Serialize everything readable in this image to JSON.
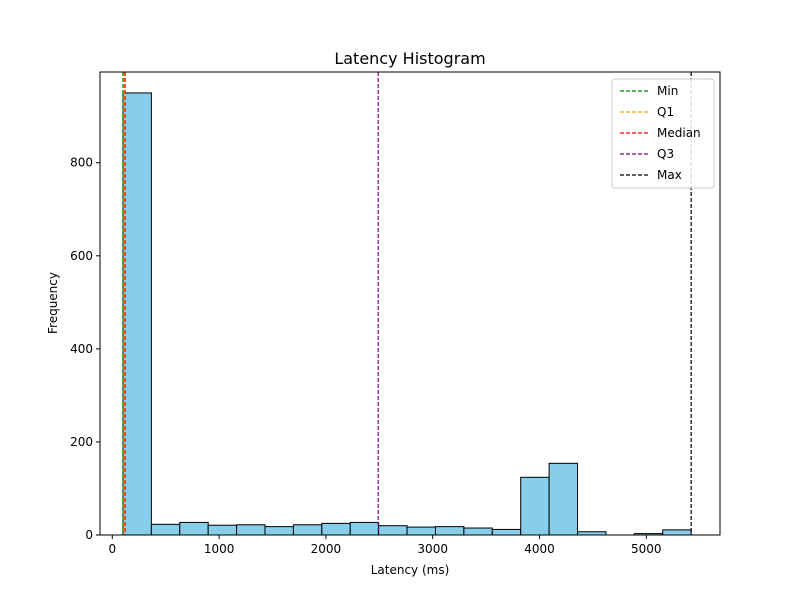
{
  "chart_data": {
    "type": "bar",
    "title": "Latency Histogram",
    "xlabel": "Latency (ms)",
    "ylabel": "Frequency",
    "xlim": [
      -115,
      5690
    ],
    "ylim": [
      0,
      995
    ],
    "xticks": [
      0,
      1000,
      2000,
      3000,
      4000,
      5000
    ],
    "yticks": [
      0,
      200,
      400,
      600,
      800
    ],
    "bar_color": "#87ceeb",
    "edge_color": "#000000",
    "bins": [
      {
        "x0": 100,
        "x1": 366,
        "count": 950
      },
      {
        "x0": 366,
        "x1": 632,
        "count": 23
      },
      {
        "x0": 632,
        "x1": 898,
        "count": 27
      },
      {
        "x0": 898,
        "x1": 1164,
        "count": 21
      },
      {
        "x0": 1164,
        "x1": 1430,
        "count": 22
      },
      {
        "x0": 1430,
        "x1": 1696,
        "count": 18
      },
      {
        "x0": 1696,
        "x1": 1962,
        "count": 22
      },
      {
        "x0": 1962,
        "x1": 2228,
        "count": 25
      },
      {
        "x0": 2228,
        "x1": 2494,
        "count": 27
      },
      {
        "x0": 2494,
        "x1": 2760,
        "count": 20
      },
      {
        "x0": 2760,
        "x1": 3026,
        "count": 17
      },
      {
        "x0": 3026,
        "x1": 3292,
        "count": 18
      },
      {
        "x0": 3292,
        "x1": 3558,
        "count": 15
      },
      {
        "x0": 3558,
        "x1": 3824,
        "count": 12
      },
      {
        "x0": 3824,
        "x1": 4090,
        "count": 124
      },
      {
        "x0": 4090,
        "x1": 4356,
        "count": 154
      },
      {
        "x0": 4356,
        "x1": 4622,
        "count": 7
      },
      {
        "x0": 4622,
        "x1": 4888,
        "count": 0
      },
      {
        "x0": 4888,
        "x1": 5154,
        "count": 3
      },
      {
        "x0": 5154,
        "x1": 5420,
        "count": 11
      }
    ],
    "reference_lines": [
      {
        "name": "Min",
        "value": 100,
        "color": "#008000"
      },
      {
        "name": "Q1",
        "value": 110,
        "color": "#ffa500"
      },
      {
        "name": "Median",
        "value": 120,
        "color": "#ff0000"
      },
      {
        "name": "Q3",
        "value": 2490,
        "color": "#800080"
      },
      {
        "name": "Max",
        "value": 5420,
        "color": "#000000"
      }
    ],
    "legend_position": "top-right",
    "grid": false
  }
}
